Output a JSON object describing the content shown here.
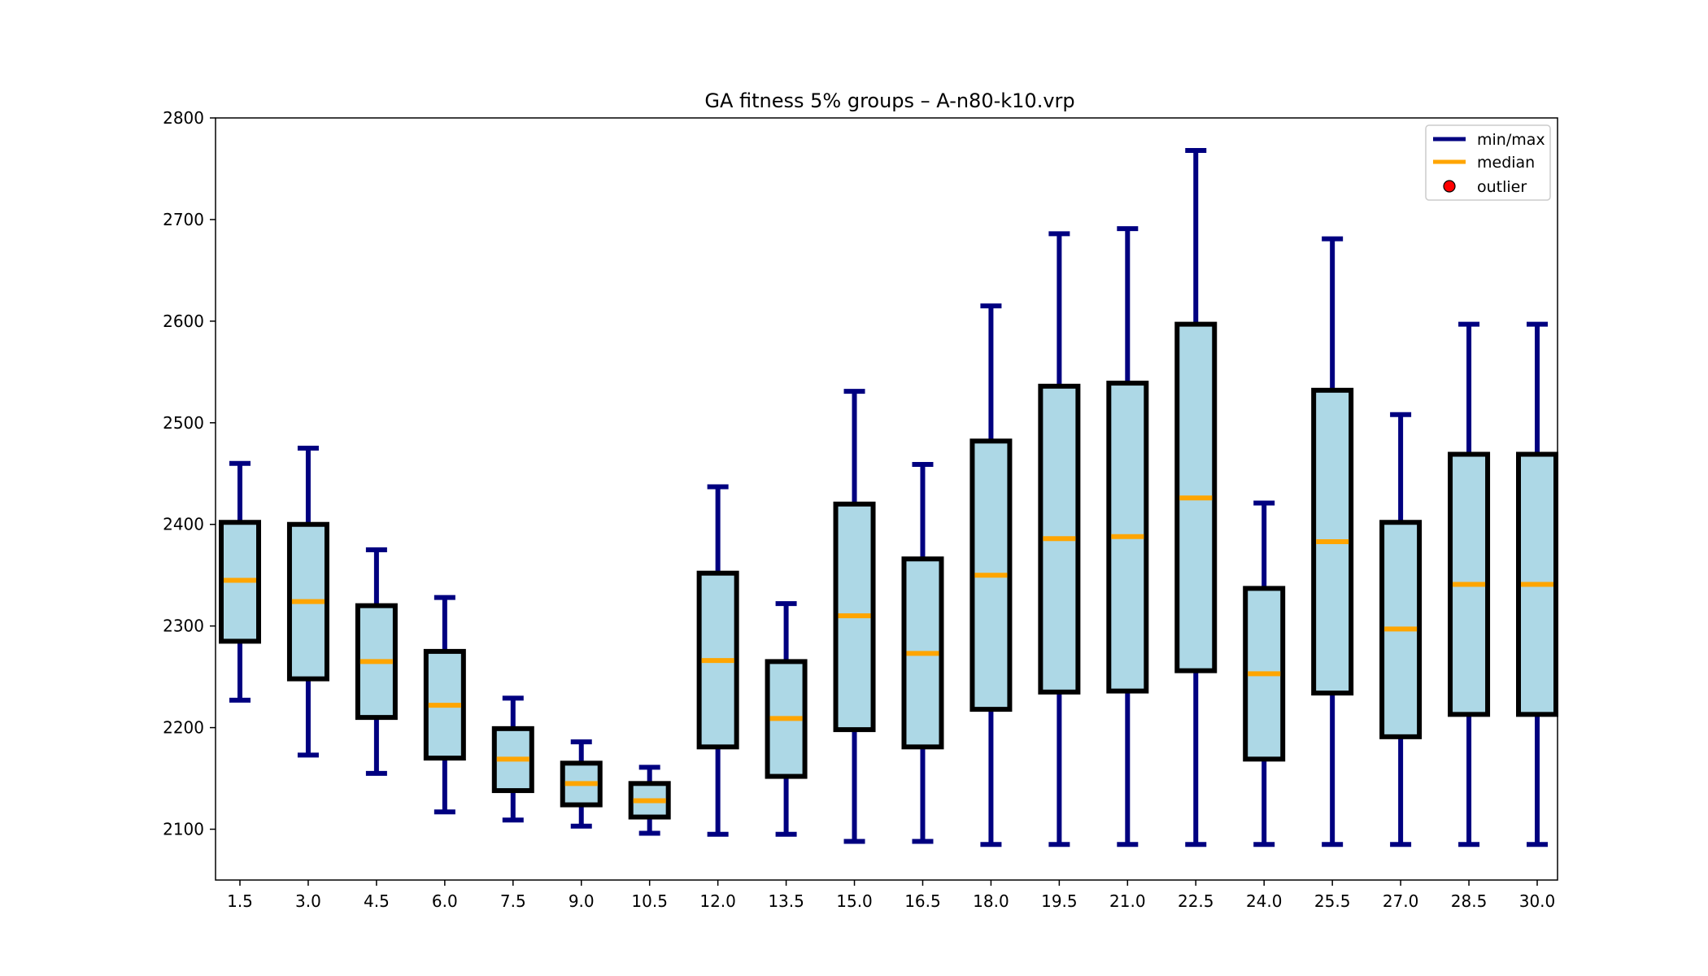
{
  "chart_data": {
    "type": "box",
    "title": "GA fitness 5% groups – A-n80-k10.vrp",
    "xlabel": "",
    "ylabel": "",
    "ylim": [
      2050,
      2800
    ],
    "yticks": [
      2100,
      2200,
      2300,
      2400,
      2500,
      2600,
      2700,
      2800
    ],
    "grid": false,
    "legend_position": "top-right",
    "legend": [
      {
        "label": "min/max",
        "kind": "line",
        "color": "#000080"
      },
      {
        "label": "median",
        "kind": "line",
        "color": "#ffa500"
      },
      {
        "label": "outlier",
        "kind": "marker",
        "color": "#ff0000"
      }
    ],
    "colors": {
      "box_fill": "#add8e6",
      "box_edge": "#000000",
      "whisker": "#000080",
      "median": "#ffa500",
      "outlier": "#ff0000"
    },
    "categories": [
      "1.5",
      "3.0",
      "4.5",
      "6.0",
      "7.5",
      "9.0",
      "10.5",
      "12.0",
      "13.5",
      "15.0",
      "16.5",
      "18.0",
      "19.5",
      "21.0",
      "22.5",
      "24.0",
      "25.5",
      "27.0",
      "28.5",
      "30.0"
    ],
    "boxes": [
      {
        "min": 2227,
        "q1": 2285,
        "median": 2345,
        "q3": 2402,
        "max": 2460
      },
      {
        "min": 2173,
        "q1": 2248,
        "median": 2324,
        "q3": 2400,
        "max": 2475
      },
      {
        "min": 2155,
        "q1": 2210,
        "median": 2265,
        "q3": 2320,
        "max": 2375
      },
      {
        "min": 2117,
        "q1": 2170,
        "median": 2222,
        "q3": 2275,
        "max": 2328
      },
      {
        "min": 2109,
        "q1": 2138,
        "median": 2169,
        "q3": 2199,
        "max": 2229
      },
      {
        "min": 2103,
        "q1": 2124,
        "median": 2145,
        "q3": 2165,
        "max": 2186
      },
      {
        "min": 2096,
        "q1": 2112,
        "median": 2128,
        "q3": 2145,
        "max": 2161
      },
      {
        "min": 2095,
        "q1": 2181,
        "median": 2266,
        "q3": 2352,
        "max": 2437
      },
      {
        "min": 2095,
        "q1": 2152,
        "median": 2209,
        "q3": 2265,
        "max": 2322
      },
      {
        "min": 2088,
        "q1": 2198,
        "median": 2310,
        "q3": 2420,
        "max": 2531
      },
      {
        "min": 2088,
        "q1": 2181,
        "median": 2273,
        "q3": 2366,
        "max": 2459
      },
      {
        "min": 2085,
        "q1": 2218,
        "median": 2350,
        "q3": 2482,
        "max": 2615
      },
      {
        "min": 2085,
        "q1": 2235,
        "median": 2386,
        "q3": 2536,
        "max": 2686
      },
      {
        "min": 2085,
        "q1": 2236,
        "median": 2388,
        "q3": 2539,
        "max": 2691
      },
      {
        "min": 2085,
        "q1": 2256,
        "median": 2426,
        "q3": 2597,
        "max": 2768
      },
      {
        "min": 2085,
        "q1": 2169,
        "median": 2253,
        "q3": 2337,
        "max": 2421
      },
      {
        "min": 2085,
        "q1": 2234,
        "median": 2383,
        "q3": 2532,
        "max": 2681
      },
      {
        "min": 2085,
        "q1": 2191,
        "median": 2297,
        "q3": 2402,
        "max": 2508
      },
      {
        "min": 2085,
        "q1": 2213,
        "median": 2341,
        "q3": 2469,
        "max": 2597
      },
      {
        "min": 2085,
        "q1": 2213,
        "median": 2341,
        "q3": 2469,
        "max": 2597
      }
    ],
    "outliers": []
  }
}
